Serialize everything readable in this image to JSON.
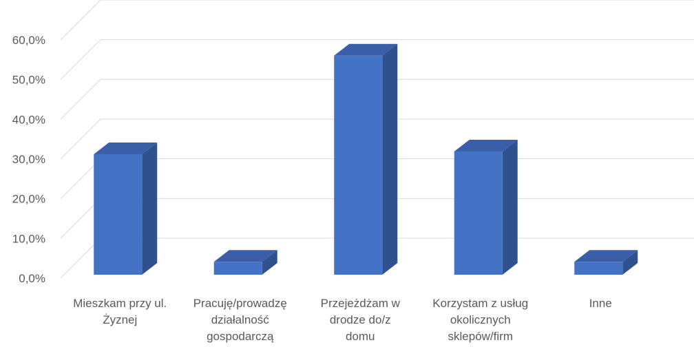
{
  "chart_data": {
    "type": "bar",
    "style": "3d-column",
    "categories": [
      [
        "Mieszkam przy ul.",
        "Żyznej"
      ],
      [
        "Pracuję/prowadzę",
        "działalność",
        "gospodarczą"
      ],
      [
        "Przejeżdżam w",
        "drodze do/z",
        "domu"
      ],
      [
        "Korzystam z usług",
        "okolicznych",
        "sklepów/firm"
      ],
      [
        "Inne"
      ]
    ],
    "values": [
      30.8,
      3.3,
      56.0,
      31.5,
      3.3
    ],
    "ylim": [
      0,
      60
    ],
    "yticks": [
      "0,0%",
      "10,0%",
      "20,0%",
      "30,0%",
      "40,0%",
      "50,0%",
      "60,0%"
    ],
    "grid": true,
    "colors": {
      "front": "#4472C4",
      "side": "#2F528F",
      "top": "#3A5FA8",
      "grid": "#D9D9D9",
      "text": "#595959"
    }
  }
}
